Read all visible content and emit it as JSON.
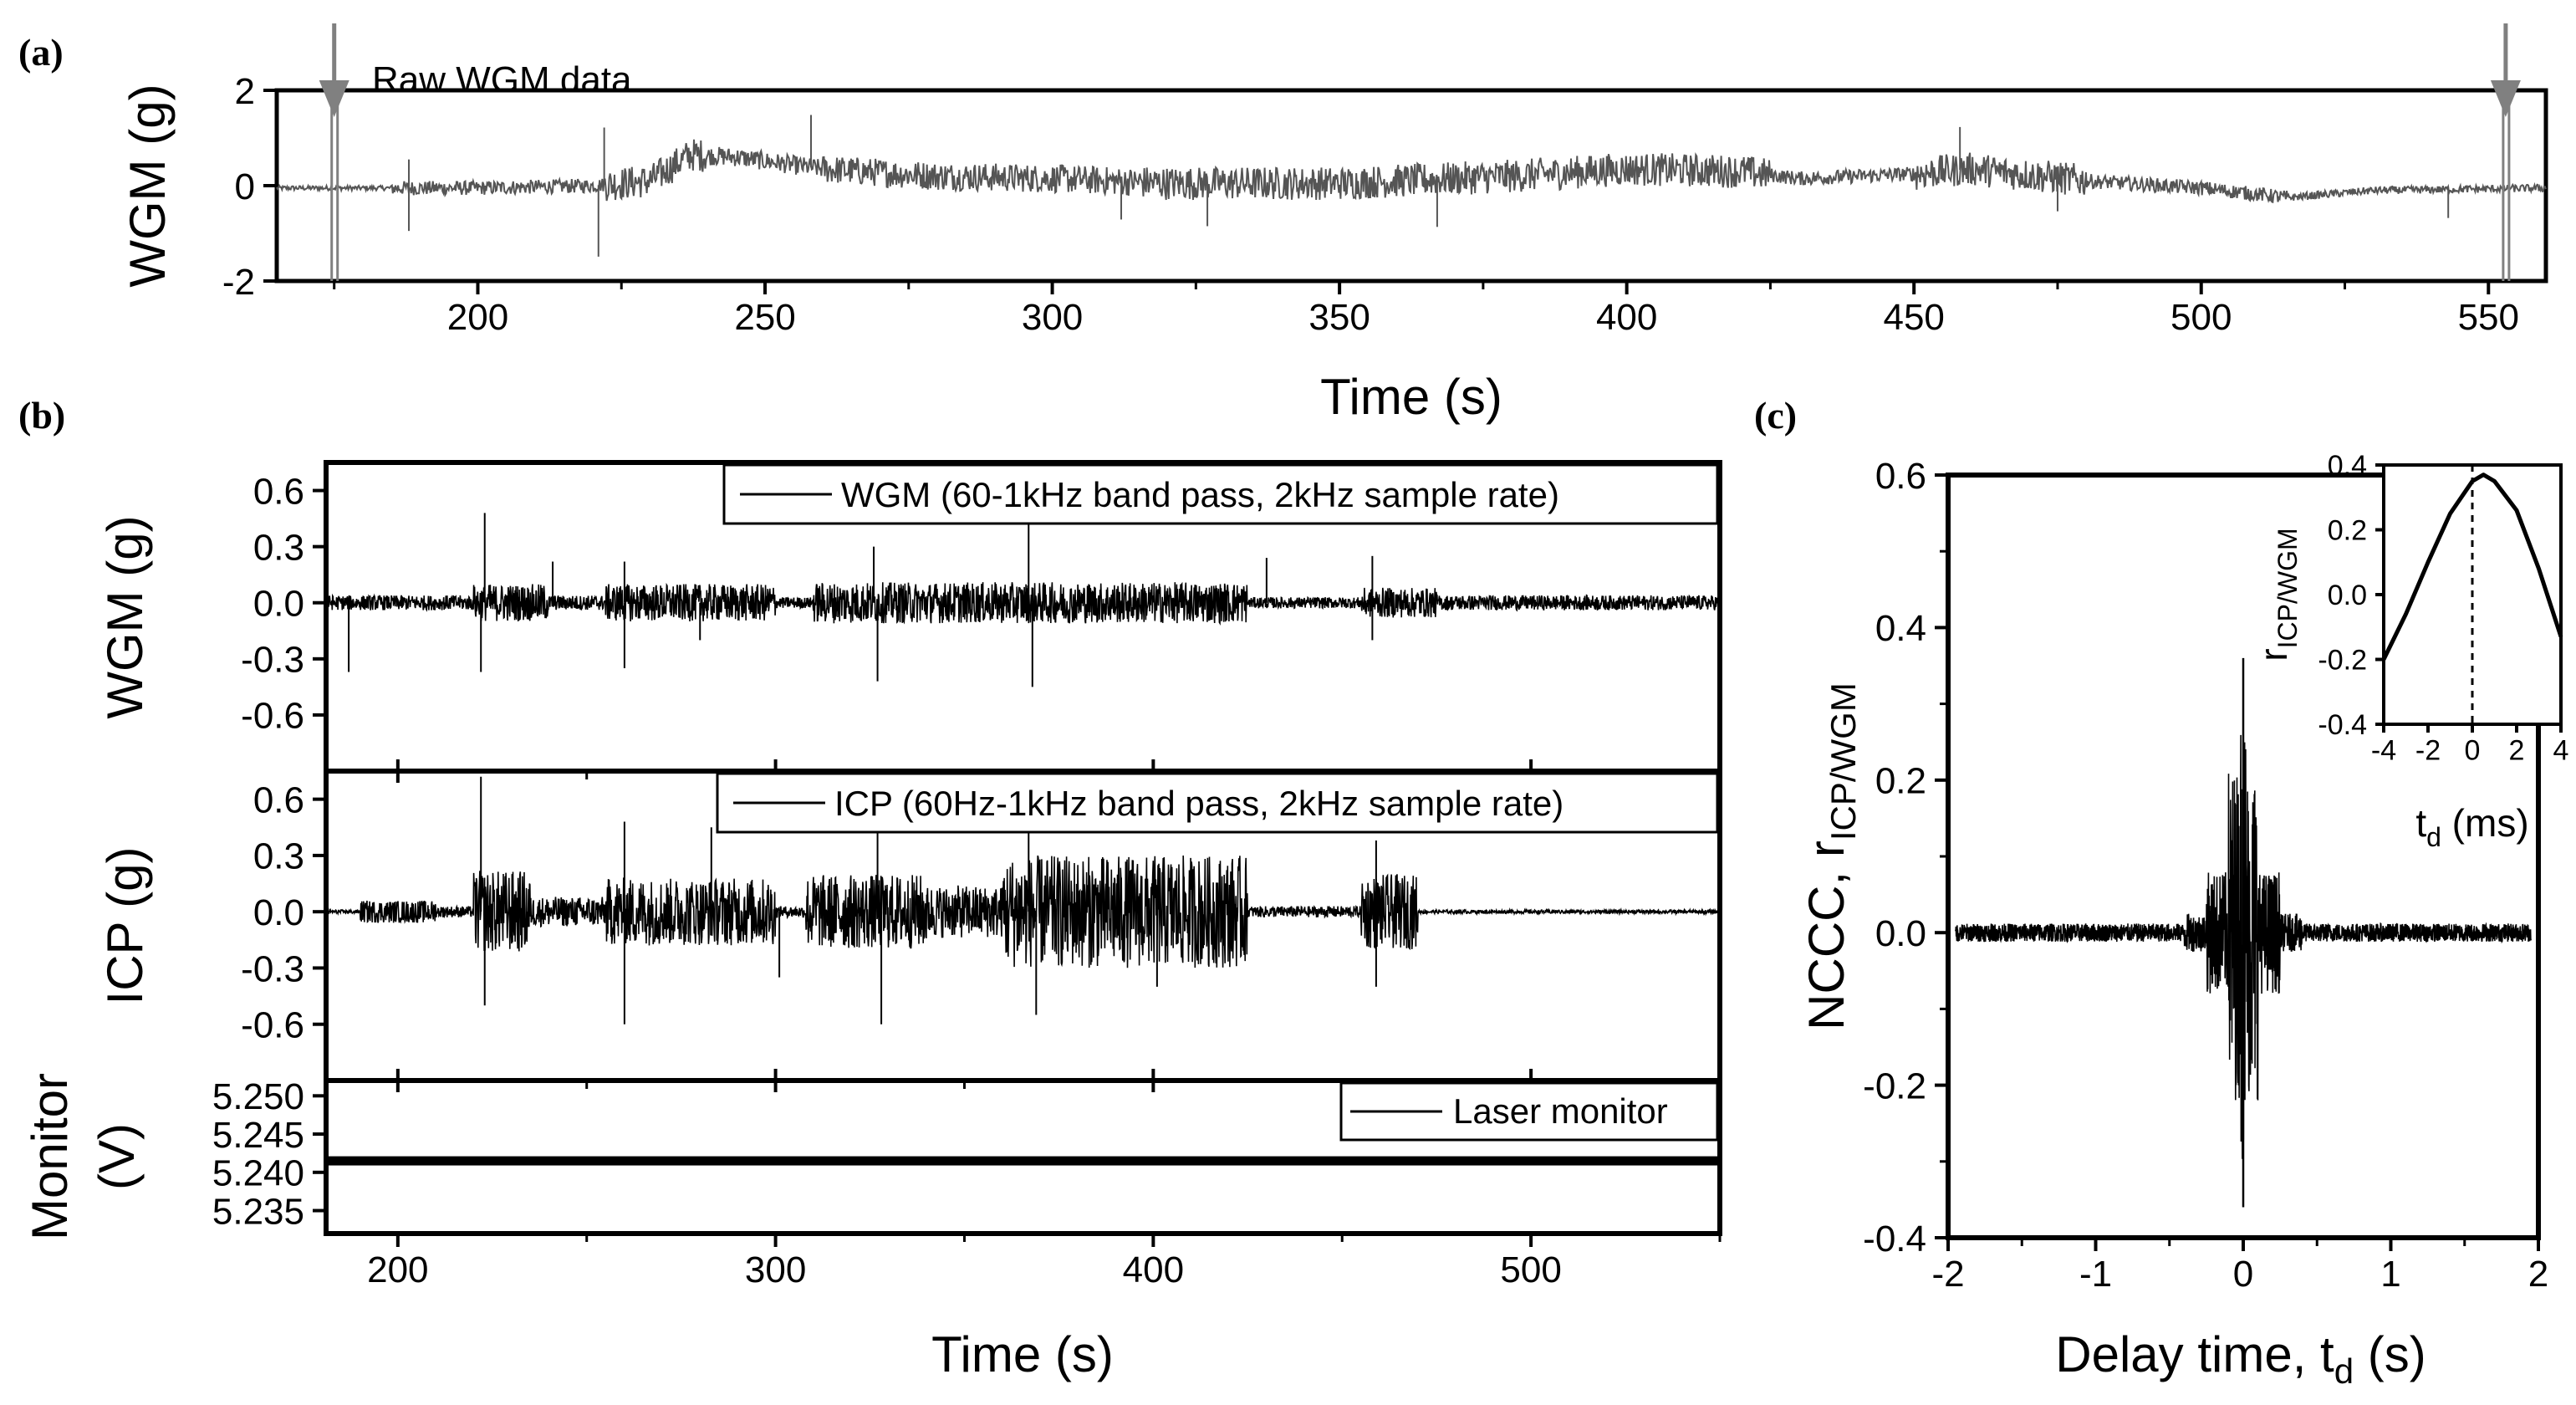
{
  "colors": {
    "panel_a_trace": "#555555",
    "trace": "#000000",
    "marker": "#808080",
    "axis": "#000000"
  },
  "chart_data": [
    {
      "id": "a",
      "panel_label": "(a)",
      "type": "line",
      "ylabel": "WGM (g)",
      "xlabel": "Time (s)",
      "xlim": [
        165,
        560
      ],
      "ylim": [
        -2,
        2
      ],
      "xticks": [
        200,
        250,
        300,
        350,
        400,
        450,
        500,
        550
      ],
      "xtick_labels": [
        "200",
        "250",
        "300",
        "350",
        "400",
        "450",
        "500",
        "550"
      ],
      "yticks": [
        2,
        0,
        -2
      ],
      "ytick_labels": [
        "2",
        "0",
        "-2"
      ],
      "series": [
        {
          "name": "Raw WGM data",
          "baseline": [
            [
              165,
              -0.05
            ],
            [
              200,
              -0.05
            ],
            [
              220,
              0.0
            ],
            [
              230,
              0.1
            ],
            [
              237,
              0.65
            ],
            [
              245,
              0.6
            ],
            [
              260,
              0.35
            ],
            [
              280,
              0.2
            ],
            [
              300,
              0.15
            ],
            [
              320,
              0.05
            ],
            [
              350,
              0.05
            ],
            [
              380,
              0.2
            ],
            [
              400,
              0.35
            ],
            [
              420,
              0.3
            ],
            [
              430,
              0.15
            ],
            [
              450,
              0.25
            ],
            [
              460,
              0.35
            ],
            [
              480,
              0.1
            ],
            [
              500,
              -0.05
            ],
            [
              515,
              -0.25
            ],
            [
              530,
              -0.1
            ],
            [
              560,
              -0.05
            ]
          ],
          "noise_segments": [
            [
              165,
              185,
              0.05
            ],
            [
              185,
              222,
              0.15
            ],
            [
              222,
              240,
              0.35
            ],
            [
              240,
              260,
              0.2
            ],
            [
              260,
              315,
              0.3
            ],
            [
              315,
              425,
              0.35
            ],
            [
              425,
              450,
              0.15
            ],
            [
              450,
              480,
              0.35
            ],
            [
              480,
              515,
              0.15
            ],
            [
              515,
              560,
              0.08
            ]
          ],
          "spikes": [
            [
              188,
              -0.9
            ],
            [
              188,
              0.6
            ],
            [
              221,
              -1.5
            ],
            [
              222,
              1.2
            ],
            [
              258,
              1.1
            ],
            [
              312,
              -0.8
            ],
            [
              327,
              -0.9
            ],
            [
              367,
              -1.0
            ],
            [
              458,
              0.9
            ],
            [
              475,
              -0.7
            ],
            [
              543,
              -0.6
            ]
          ]
        }
      ],
      "annotations": [
        {
          "text": "Raw WGM data",
          "x": 200,
          "y": 2.0
        },
        {
          "type": "arrow",
          "x": 175,
          "label": "start marker"
        },
        {
          "type": "arrow",
          "x": 553,
          "label": "end marker"
        }
      ]
    },
    {
      "id": "b",
      "panel_label": "(b)",
      "type": "line",
      "xlabel": "Time (s)",
      "xlim": [
        181,
        550
      ],
      "xticks": [
        200,
        300,
        400,
        500
      ],
      "xtick_labels": [
        "200",
        "300",
        "400",
        "500"
      ],
      "subplots": [
        {
          "id": "b1",
          "ylabel": "WGM (g)",
          "ylim": [
            -0.9,
            0.75
          ],
          "yticks": [
            0.6,
            0.3,
            0.0,
            -0.3,
            -0.6
          ],
          "ytick_labels": [
            "0.6",
            "0.3",
            "0.0",
            "-0.3",
            "-0.6"
          ],
          "legend": "WGM (60-1kHz band pass, 2kHz sample rate)",
          "legend_position": "top-right",
          "noise_segments": [
            [
              181,
              220,
              0.04
            ],
            [
              220,
              240,
              0.1
            ],
            [
              240,
              255,
              0.04
            ],
            [
              255,
              300,
              0.1
            ],
            [
              300,
              310,
              0.03
            ],
            [
              310,
              425,
              0.11
            ],
            [
              425,
              455,
              0.03
            ],
            [
              455,
              475,
              0.08
            ],
            [
              475,
              550,
              0.04
            ]
          ],
          "spikes": [
            [
              187,
              -0.37
            ],
            [
              223,
              0.48
            ],
            [
              222,
              -0.37
            ],
            [
              241,
              0.22
            ],
            [
              260,
              0.22
            ],
            [
              260,
              -0.35
            ],
            [
              280,
              -0.2
            ],
            [
              326,
              0.3
            ],
            [
              327,
              -0.42
            ],
            [
              367,
              0.42
            ],
            [
              368,
              -0.45
            ],
            [
              430,
              0.24
            ],
            [
              458,
              0.25
            ],
            [
              458,
              -0.2
            ]
          ]
        },
        {
          "id": "b2",
          "ylabel": "ICP (g)",
          "ylim": [
            -0.9,
            0.75
          ],
          "yticks": [
            0.6,
            0.3,
            0.0,
            -0.3,
            -0.6
          ],
          "ytick_labels": [
            "0.6",
            "0.3",
            "0.0",
            "-0.3",
            "-0.6"
          ],
          "legend": "ICP (60Hz-1kHz band pass, 2kHz sample rate)",
          "legend_position": "top-right",
          "noise_segments": [
            [
              181,
              190,
              0.01
            ],
            [
              190,
              210,
              0.06
            ],
            [
              210,
              220,
              0.03
            ],
            [
              220,
              235,
              0.22
            ],
            [
              235,
              255,
              0.08
            ],
            [
              255,
              300,
              0.18
            ],
            [
              300,
              308,
              0.03
            ],
            [
              308,
              340,
              0.2
            ],
            [
              340,
              360,
              0.14
            ],
            [
              360,
              425,
              0.3
            ],
            [
              425,
              455,
              0.03
            ],
            [
              455,
              470,
              0.2
            ],
            [
              470,
              550,
              0.01
            ]
          ],
          "spikes": [
            [
              222,
              0.72
            ],
            [
              223,
              -0.5
            ],
            [
              260,
              0.48
            ],
            [
              260,
              -0.6
            ],
            [
              283,
              0.45
            ],
            [
              301,
              -0.35
            ],
            [
              327,
              0.45
            ],
            [
              328,
              -0.6
            ],
            [
              367,
              0.5
            ],
            [
              369,
              -0.55
            ],
            [
              401,
              -0.4
            ],
            [
              459,
              0.38
            ],
            [
              459,
              -0.4
            ]
          ]
        },
        {
          "id": "b3",
          "ylabel": "Monitor (V)",
          "ylim": [
            5.232,
            5.252
          ],
          "yticks": [
            5.25,
            5.245,
            5.24,
            5.235
          ],
          "ytick_labels": [
            "5.250",
            "5.245",
            "5.240",
            "5.235"
          ],
          "legend": "Laser monitor",
          "legend_position": "top-right",
          "series_level": 5.2415,
          "series_band": 0.0012
        }
      ]
    },
    {
      "id": "c",
      "panel_label": "(c)",
      "type": "line",
      "xlabel": "Delay time, t",
      "xlabel_sub": "d",
      "xlabel_suffix": " (s)",
      "ylabel": "NCCC, r",
      "ylabel_sub": "ICP/WGM",
      "xlim": [
        -2,
        2
      ],
      "ylim": [
        -0.4,
        0.6
      ],
      "xticks": [
        -2,
        -1,
        0,
        1,
        2
      ],
      "xtick_labels": [
        "-2",
        "-1",
        "0",
        "1",
        "2"
      ],
      "yticks": [
        0.6,
        0.4,
        0.2,
        0.0,
        -0.2,
        -0.4
      ],
      "ytick_labels": [
        "0.6",
        "0.4",
        "0.2",
        "0.0",
        "-0.2",
        "-0.4"
      ],
      "series_extent": [
        -1.95,
        1.95
      ],
      "peak": {
        "x": 0.0,
        "max": 0.36,
        "min": -0.36
      },
      "inset": {
        "xlim": [
          -4,
          4
        ],
        "ylim": [
          -0.4,
          0.4
        ],
        "xticks": [
          -4,
          -2,
          0,
          2,
          4
        ],
        "xtick_labels": [
          "-4",
          "-2",
          "0",
          "2",
          "4"
        ],
        "yticks": [
          0.4,
          0.2,
          0.0,
          -0.2,
          -0.4
        ],
        "ytick_labels": [
          "0.4",
          "0.2",
          "0.0",
          "-0.2",
          "-0.4"
        ],
        "xlabel": "t",
        "xlabel_sub": "d",
        "xlabel_suffix": " (ms)",
        "ylabel": "r",
        "ylabel_sub": "ICP/WGM",
        "curve": [
          [
            -4,
            -0.2
          ],
          [
            -3,
            -0.06
          ],
          [
            -2,
            0.1
          ],
          [
            -1,
            0.25
          ],
          [
            0,
            0.35
          ],
          [
            0.5,
            0.37
          ],
          [
            1,
            0.35
          ],
          [
            2,
            0.26
          ],
          [
            3,
            0.08
          ],
          [
            4,
            -0.13
          ]
        ],
        "dashed_x": 0
      }
    }
  ]
}
